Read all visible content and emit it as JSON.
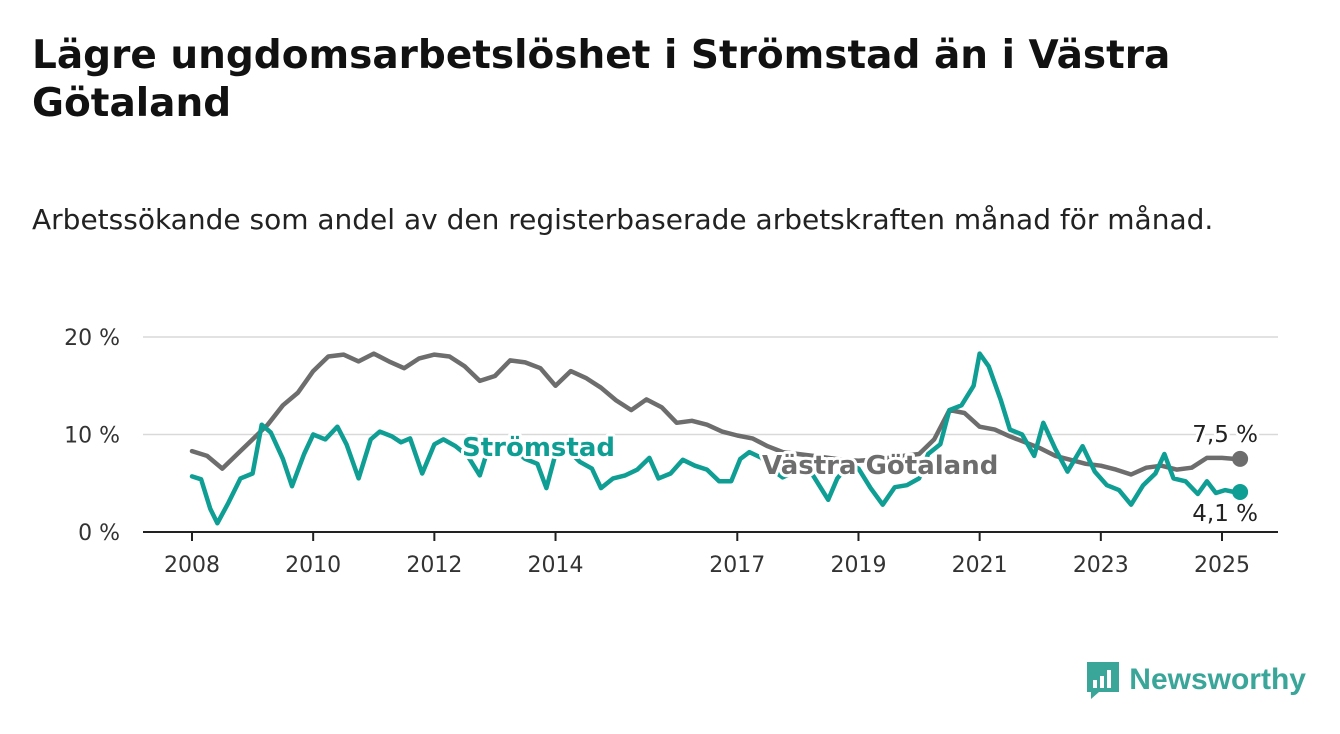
{
  "title": "Lägre ungdomsarbetslöshet i Strömstad än i Västra Götaland",
  "subtitle": "Arbetssökande som andel av den registerbaserade arbetskraften månad för månad.",
  "brand": "Newsworthy",
  "colors": {
    "stromstad": "#0f9e94",
    "vastra": "#6d6d6d",
    "grid": "#d9d9d9",
    "brand": "#3aa69a"
  },
  "chart_data": {
    "type": "line",
    "title": "Lägre ungdomsarbetslöshet i Strömstad än i Västra Götaland",
    "subtitle": "Arbetssökande som andel av den registerbaserade arbetskraften månad för månad.",
    "x_ticks": [
      "2008",
      "2010",
      "2012",
      "2014",
      "2017",
      "2019",
      "2021",
      "2023",
      "2025"
    ],
    "y_ticks": [
      "0 %",
      "10 %",
      "20 %"
    ],
    "ylim": [
      0,
      20
    ],
    "grid": "horizontal",
    "series": [
      {
        "name": "Västra Götaland",
        "end_label": "7,5 %",
        "points": [
          [
            2008.0,
            8.3
          ],
          [
            2008.25,
            7.8
          ],
          [
            2008.5,
            6.5
          ],
          [
            2008.75,
            8.0
          ],
          [
            2009.0,
            9.5
          ],
          [
            2009.25,
            11.0
          ],
          [
            2009.5,
            13.0
          ],
          [
            2009.75,
            14.3
          ],
          [
            2010.0,
            16.5
          ],
          [
            2010.25,
            18.0
          ],
          [
            2010.5,
            18.2
          ],
          [
            2010.75,
            17.5
          ],
          [
            2011.0,
            18.3
          ],
          [
            2011.25,
            17.5
          ],
          [
            2011.5,
            16.8
          ],
          [
            2011.75,
            17.8
          ],
          [
            2012.0,
            18.2
          ],
          [
            2012.25,
            18.0
          ],
          [
            2012.5,
            17.0
          ],
          [
            2012.75,
            15.5
          ],
          [
            2013.0,
            16.0
          ],
          [
            2013.25,
            17.6
          ],
          [
            2013.5,
            17.4
          ],
          [
            2013.75,
            16.8
          ],
          [
            2014.0,
            15.0
          ],
          [
            2014.25,
            16.5
          ],
          [
            2014.5,
            15.8
          ],
          [
            2014.75,
            14.8
          ],
          [
            2015.0,
            13.5
          ],
          [
            2015.25,
            12.5
          ],
          [
            2015.5,
            13.6
          ],
          [
            2015.75,
            12.8
          ],
          [
            2016.0,
            11.2
          ],
          [
            2016.25,
            11.4
          ],
          [
            2016.5,
            11.0
          ],
          [
            2016.75,
            10.3
          ],
          [
            2017.0,
            9.9
          ],
          [
            2017.25,
            9.6
          ],
          [
            2017.5,
            8.8
          ],
          [
            2017.75,
            8.2
          ],
          [
            2018.0,
            8.0
          ],
          [
            2018.25,
            7.8
          ],
          [
            2018.5,
            7.6
          ],
          [
            2018.75,
            7.4
          ],
          [
            2019.0,
            7.3
          ],
          [
            2019.25,
            7.4
          ],
          [
            2019.5,
            7.6
          ],
          [
            2019.75,
            7.8
          ],
          [
            2020.0,
            8.0
          ],
          [
            2020.25,
            9.5
          ],
          [
            2020.5,
            12.5
          ],
          [
            2020.75,
            12.2
          ],
          [
            2021.0,
            10.8
          ],
          [
            2021.25,
            10.5
          ],
          [
            2021.5,
            9.8
          ],
          [
            2021.75,
            9.2
          ],
          [
            2022.0,
            8.6
          ],
          [
            2022.25,
            7.8
          ],
          [
            2022.5,
            7.4
          ],
          [
            2022.75,
            7.0
          ],
          [
            2023.0,
            6.8
          ],
          [
            2023.25,
            6.4
          ],
          [
            2023.5,
            5.9
          ],
          [
            2023.75,
            6.6
          ],
          [
            2024.0,
            6.8
          ],
          [
            2024.25,
            6.4
          ],
          [
            2024.5,
            6.6
          ],
          [
            2024.75,
            7.6
          ],
          [
            2025.0,
            7.6
          ],
          [
            2025.2,
            7.5
          ]
        ]
      },
      {
        "name": "Strömstad",
        "end_label": "4,1 %",
        "points": [
          [
            2008.0,
            5.7
          ],
          [
            2008.15,
            5.4
          ],
          [
            2008.3,
            2.4
          ],
          [
            2008.42,
            0.9
          ],
          [
            2008.6,
            3.0
          ],
          [
            2008.8,
            5.5
          ],
          [
            2009.0,
            6.0
          ],
          [
            2009.15,
            11.0
          ],
          [
            2009.3,
            10.2
          ],
          [
            2009.5,
            7.5
          ],
          [
            2009.65,
            4.7
          ],
          [
            2009.85,
            8.0
          ],
          [
            2010.0,
            10.0
          ],
          [
            2010.2,
            9.5
          ],
          [
            2010.4,
            10.8
          ],
          [
            2010.55,
            9.0
          ],
          [
            2010.75,
            5.5
          ],
          [
            2010.95,
            9.5
          ],
          [
            2011.1,
            10.3
          ],
          [
            2011.3,
            9.8
          ],
          [
            2011.45,
            9.2
          ],
          [
            2011.6,
            9.6
          ],
          [
            2011.8,
            6.0
          ],
          [
            2012.0,
            9.0
          ],
          [
            2012.15,
            9.5
          ],
          [
            2012.35,
            8.8
          ],
          [
            2012.55,
            7.8
          ],
          [
            2012.75,
            5.8
          ],
          [
            2012.9,
            8.8
          ],
          [
            2013.1,
            9.0
          ],
          [
            2013.3,
            8.6
          ],
          [
            2013.5,
            7.5
          ],
          [
            2013.7,
            7.0
          ],
          [
            2013.85,
            4.5
          ],
          [
            2014.0,
            8.0
          ],
          [
            2014.2,
            8.4
          ],
          [
            2014.4,
            7.2
          ],
          [
            2014.6,
            6.5
          ],
          [
            2014.75,
            4.5
          ],
          [
            2014.95,
            5.5
          ],
          [
            2015.15,
            5.8
          ],
          [
            2015.35,
            6.4
          ],
          [
            2015.55,
            7.6
          ],
          [
            2015.7,
            5.5
          ],
          [
            2015.9,
            6.0
          ],
          [
            2016.1,
            7.4
          ],
          [
            2016.3,
            6.8
          ],
          [
            2016.5,
            6.4
          ],
          [
            2016.7,
            5.2
          ],
          [
            2016.9,
            5.2
          ],
          [
            2017.05,
            7.5
          ],
          [
            2017.2,
            8.2
          ],
          [
            2017.4,
            7.6
          ],
          [
            2017.55,
            6.5
          ],
          [
            2017.75,
            5.6
          ],
          [
            2017.95,
            6.2
          ],
          [
            2018.15,
            6.8
          ],
          [
            2018.35,
            4.8
          ],
          [
            2018.5,
            3.3
          ],
          [
            2018.65,
            5.5
          ],
          [
            2018.85,
            7.0
          ],
          [
            2019.0,
            6.5
          ],
          [
            2019.2,
            4.5
          ],
          [
            2019.4,
            2.8
          ],
          [
            2019.6,
            4.6
          ],
          [
            2019.8,
            4.8
          ],
          [
            2020.0,
            5.5
          ],
          [
            2020.15,
            8.0
          ],
          [
            2020.35,
            9.0
          ],
          [
            2020.5,
            12.5
          ],
          [
            2020.7,
            13.0
          ],
          [
            2020.9,
            15.0
          ],
          [
            2021.0,
            18.3
          ],
          [
            2021.15,
            17.0
          ],
          [
            2021.35,
            13.5
          ],
          [
            2021.5,
            10.5
          ],
          [
            2021.7,
            10.0
          ],
          [
            2021.9,
            7.8
          ],
          [
            2022.05,
            11.2
          ],
          [
            2022.25,
            8.5
          ],
          [
            2022.45,
            6.2
          ],
          [
            2022.7,
            8.8
          ],
          [
            2022.9,
            6.2
          ],
          [
            2023.1,
            4.8
          ],
          [
            2023.3,
            4.3
          ],
          [
            2023.5,
            2.8
          ],
          [
            2023.7,
            4.8
          ],
          [
            2023.9,
            6.0
          ],
          [
            2024.05,
            8.0
          ],
          [
            2024.2,
            5.5
          ],
          [
            2024.4,
            5.2
          ],
          [
            2024.6,
            3.9
          ],
          [
            2024.75,
            5.2
          ],
          [
            2024.9,
            4.0
          ],
          [
            2025.05,
            4.3
          ],
          [
            2025.2,
            4.1
          ]
        ]
      }
    ]
  }
}
